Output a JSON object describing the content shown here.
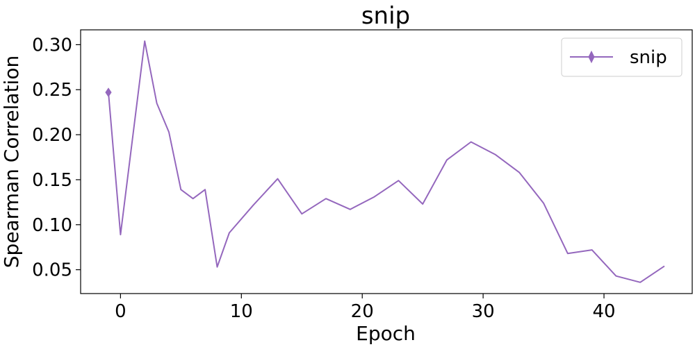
{
  "chart_data": {
    "type": "line",
    "title": "snip",
    "xlabel": "Epoch",
    "ylabel": "Spearman Correlation",
    "xlim": [
      -3.3,
      47.3
    ],
    "ylim": [
      0.0235,
      0.3165
    ],
    "xticks": [
      0,
      10,
      20,
      30,
      40
    ],
    "yticks": [
      0.05,
      0.1,
      0.15,
      0.2,
      0.25,
      0.3
    ],
    "grid": false,
    "legend_position": "top-right",
    "series": [
      {
        "name": "snip",
        "color": "#9467bd",
        "marker": "thin_diamond",
        "x": [
          -1,
          0,
          2,
          3,
          4,
          5,
          6,
          7,
          8,
          9,
          11,
          13,
          15,
          17,
          19,
          21,
          23,
          25,
          27,
          29,
          31,
          33,
          35,
          37,
          39,
          41,
          43,
          45
        ],
        "y": [
          0.247,
          0.089,
          0.304,
          0.235,
          0.203,
          0.139,
          0.129,
          0.139,
          0.053,
          0.091,
          0.122,
          0.151,
          0.112,
          0.129,
          0.117,
          0.131,
          0.149,
          0.123,
          0.172,
          0.192,
          0.178,
          0.158,
          0.124,
          0.068,
          0.072,
          0.043,
          0.036,
          0.054
        ],
        "marker_indices": [
          0
        ]
      }
    ]
  },
  "labels": {
    "title": "snip",
    "xlabel": "Epoch",
    "ylabel": "Spearman Correlation",
    "legend_entry": "snip"
  }
}
